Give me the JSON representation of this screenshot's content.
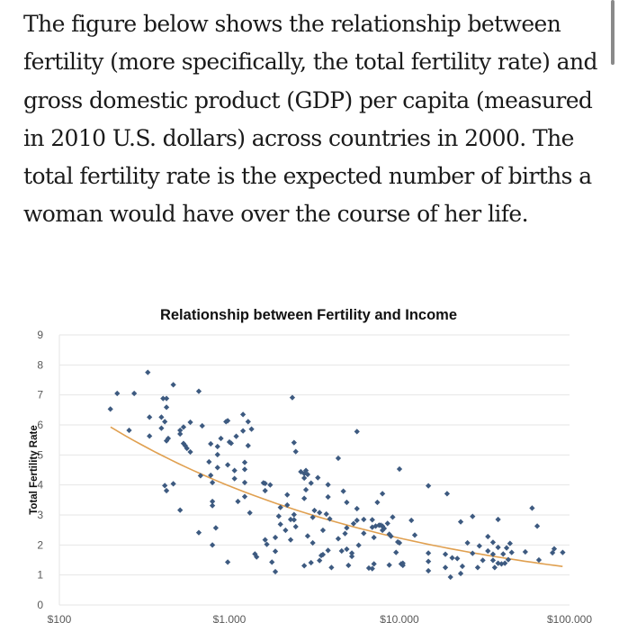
{
  "article": {
    "paragraph": "The figure below shows the relationship between fertility (more specifically, the total fertility rate) and gross domestic product (GDP) per capita (measured in 2010 U.S. dollars) across countries in 2000. The total fertility rate is the expected number of births a woman would have over the course of her life."
  },
  "colors": {
    "points": "#3d5a80",
    "trend": "#e0a050",
    "grid": "#e6e6e6"
  },
  "chart_data": {
    "type": "scatter",
    "title": "Relationship between Fertility and Income",
    "xlabel": "",
    "ylabel": "Total Fertility Rate",
    "xscale": "log",
    "xlim": [
      100,
      100000
    ],
    "ylim": [
      0,
      9
    ],
    "grid": true,
    "legend": "none",
    "x_tick_labels": [
      "$100",
      "$1,000",
      "$10,000",
      "$100,000"
    ],
    "x_ticks": [
      100,
      1000,
      10000,
      100000
    ],
    "y_ticks": [
      0,
      1,
      2,
      3,
      4,
      5,
      6,
      7,
      8,
      9
    ],
    "y_tick_labels": [
      "0",
      "1",
      "2",
      "3",
      "4",
      "5",
      "6",
      "7",
      "8",
      "9"
    ],
    "point_format": "[log10(GDP per capita), total fertility rate]",
    "points": [
      [
        2.3,
        6.53
      ],
      [
        2.34,
        7.05
      ],
      [
        2.44,
        7.05
      ],
      [
        2.41,
        5.82
      ],
      [
        2.52,
        7.75
      ],
      [
        2.53,
        6.26
      ],
      [
        2.53,
        5.63
      ],
      [
        2.6,
        6.26
      ],
      [
        2.6,
        5.89
      ],
      [
        2.61,
        6.88
      ],
      [
        2.63,
        6.88
      ],
      [
        2.62,
        6.11
      ],
      [
        2.63,
        6.59
      ],
      [
        2.63,
        5.47
      ],
      [
        2.64,
        5.55
      ],
      [
        2.67,
        7.34
      ],
      [
        2.62,
        3.98
      ],
      [
        2.63,
        3.81
      ],
      [
        2.67,
        4.04
      ],
      [
        2.71,
        3.16
      ],
      [
        2.71,
        5.82
      ],
      [
        2.71,
        5.7
      ],
      [
        2.73,
        5.93
      ],
      [
        2.73,
        5.38
      ],
      [
        2.74,
        5.31
      ],
      [
        2.75,
        5.22
      ],
      [
        2.77,
        6.09
      ],
      [
        2.77,
        5.1
      ],
      [
        2.82,
        7.12
      ],
      [
        2.84,
        5.97
      ],
      [
        2.82,
        2.41
      ],
      [
        2.83,
        4.31
      ],
      [
        2.88,
        4.77
      ],
      [
        2.89,
        5.37
      ],
      [
        2.89,
        4.32
      ],
      [
        2.9,
        4.08
      ],
      [
        2.9,
        3.45
      ],
      [
        2.9,
        3.31
      ],
      [
        2.9,
        2.0
      ],
      [
        2.92,
        2.57
      ],
      [
        2.93,
        5.28
      ],
      [
        2.93,
        5.01
      ],
      [
        2.93,
        4.58
      ],
      [
        2.95,
        5.55
      ],
      [
        2.98,
        6.11
      ],
      [
        2.99,
        6.14
      ],
      [
        2.99,
        4.67
      ],
      [
        3.0,
        5.43
      ],
      [
        3.01,
        5.39
      ],
      [
        2.99,
        1.43
      ],
      [
        3.03,
        4.21
      ],
      [
        3.04,
        5.62
      ],
      [
        3.03,
        4.48
      ],
      [
        3.05,
        3.45
      ],
      [
        3.08,
        5.8
      ],
      [
        3.08,
        6.35
      ],
      [
        3.09,
        4.75
      ],
      [
        3.09,
        4.52
      ],
      [
        3.09,
        4.08
      ],
      [
        3.09,
        3.61
      ],
      [
        3.11,
        5.31
      ],
      [
        3.11,
        6.11
      ],
      [
        3.12,
        3.07
      ],
      [
        3.13,
        5.86
      ],
      [
        3.15,
        1.7
      ],
      [
        3.16,
        1.6
      ],
      [
        3.2,
        4.07
      ],
      [
        3.21,
        4.05
      ],
      [
        3.21,
        3.81
      ],
      [
        3.24,
        4.0
      ],
      [
        3.21,
        2.17
      ],
      [
        3.22,
        2.02
      ],
      [
        3.25,
        1.43
      ],
      [
        3.27,
        1.11
      ],
      [
        3.27,
        2.25
      ],
      [
        3.27,
        1.79
      ],
      [
        3.29,
        2.96
      ],
      [
        3.3,
        3.25
      ],
      [
        3.3,
        2.69
      ],
      [
        3.33,
        2.49
      ],
      [
        3.34,
        3.67
      ],
      [
        3.34,
        3.33
      ],
      [
        3.36,
        2.17
      ],
      [
        3.37,
        6.91
      ],
      [
        3.36,
        2.85
      ],
      [
        3.38,
        5.41
      ],
      [
        3.39,
        5.11
      ],
      [
        3.38,
        2.84
      ],
      [
        3.38,
        3.01
      ],
      [
        3.39,
        2.61
      ],
      [
        3.42,
        4.44
      ],
      [
        3.44,
        4.23
      ],
      [
        3.44,
        4.38
      ],
      [
        3.45,
        4.48
      ],
      [
        3.46,
        4.35
      ],
      [
        3.45,
        3.84
      ],
      [
        3.44,
        3.55
      ],
      [
        3.44,
        1.31
      ],
      [
        3.46,
        2.3
      ],
      [
        3.48,
        1.41
      ],
      [
        3.48,
        4.06
      ],
      [
        3.49,
        2.92
      ],
      [
        3.5,
        3.15
      ],
      [
        3.52,
        4.24
      ],
      [
        3.53,
        3.08
      ],
      [
        3.49,
        2.07
      ],
      [
        3.53,
        1.48
      ],
      [
        3.54,
        1.65
      ],
      [
        3.55,
        1.68
      ],
      [
        3.55,
        2.49
      ],
      [
        3.57,
        3.03
      ],
      [
        3.58,
        4.01
      ],
      [
        3.58,
        3.6
      ],
      [
        3.58,
        1.82
      ],
      [
        3.59,
        2.87
      ],
      [
        3.6,
        1.25
      ],
      [
        3.64,
        4.89
      ],
      [
        3.64,
        2.21
      ],
      [
        3.67,
        3.79
      ],
      [
        3.66,
        1.8
      ],
      [
        3.68,
        2.38
      ],
      [
        3.69,
        2.57
      ],
      [
        3.69,
        1.86
      ],
      [
        3.69,
        3.42
      ],
      [
        3.7,
        1.32
      ],
      [
        3.72,
        1.73
      ],
      [
        3.72,
        1.62
      ],
      [
        3.73,
        2.71
      ],
      [
        3.75,
        5.78
      ],
      [
        3.75,
        3.21
      ],
      [
        3.75,
        2.82
      ],
      [
        3.76,
        1.99
      ],
      [
        3.79,
        2.39
      ],
      [
        3.79,
        2.85
      ],
      [
        3.82,
        1.23
      ],
      [
        3.84,
        2.59
      ],
      [
        3.84,
        1.21
      ],
      [
        3.84,
        2.84
      ],
      [
        3.85,
        1.37
      ],
      [
        3.85,
        2.25
      ],
      [
        3.86,
        2.63
      ],
      [
        3.87,
        3.42
      ],
      [
        3.88,
        2.66
      ],
      [
        3.89,
        2.66
      ],
      [
        3.9,
        2.49
      ],
      [
        3.9,
        3.71
      ],
      [
        3.9,
        2.63
      ],
      [
        3.91,
        2.55
      ],
      [
        3.93,
        2.72
      ],
      [
        3.94,
        1.33
      ],
      [
        3.94,
        2.36
      ],
      [
        3.95,
        2.29
      ],
      [
        3.96,
        2.93
      ],
      [
        3.98,
        1.75
      ],
      [
        3.99,
        2.1
      ],
      [
        4.0,
        2.07
      ],
      [
        4.0,
        4.53
      ],
      [
        4.01,
        1.37
      ],
      [
        4.02,
        1.32
      ],
      [
        4.02,
        1.39
      ],
      [
        4.07,
        2.82
      ],
      [
        4.09,
        2.33
      ],
      [
        4.17,
        3.97
      ],
      [
        4.17,
        1.73
      ],
      [
        4.17,
        1.45
      ],
      [
        4.17,
        1.14
      ],
      [
        4.27,
        1.69
      ],
      [
        4.27,
        1.25
      ],
      [
        4.28,
        3.71
      ],
      [
        4.3,
        0.93
      ],
      [
        4.31,
        1.57
      ],
      [
        4.34,
        1.55
      ],
      [
        4.36,
        2.77
      ],
      [
        4.36,
        1.05
      ],
      [
        4.37,
        1.29
      ],
      [
        4.4,
        2.07
      ],
      [
        4.43,
        1.72
      ],
      [
        4.43,
        2.95
      ],
      [
        4.46,
        1.25
      ],
      [
        4.47,
        1.97
      ],
      [
        4.49,
        1.49
      ],
      [
        4.52,
        2.28
      ],
      [
        4.52,
        1.8
      ],
      [
        4.55,
        1.69
      ],
      [
        4.55,
        1.49
      ],
      [
        4.55,
        2.09
      ],
      [
        4.56,
        1.25
      ],
      [
        4.58,
        2.85
      ],
      [
        4.58,
        1.39
      ],
      [
        4.58,
        1.92
      ],
      [
        4.6,
        1.37
      ],
      [
        4.61,
        1.7
      ],
      [
        4.62,
        1.39
      ],
      [
        4.63,
        1.9
      ],
      [
        4.64,
        1.51
      ],
      [
        4.65,
        2.05
      ],
      [
        4.66,
        1.75
      ],
      [
        4.74,
        1.77
      ],
      [
        4.78,
        3.23
      ],
      [
        4.81,
        2.63
      ],
      [
        4.82,
        1.5
      ],
      [
        4.9,
        1.74
      ],
      [
        4.91,
        1.87
      ],
      [
        4.96,
        1.75
      ]
    ],
    "trendline": {
      "type": "power",
      "x_range": [
        200,
        91000
      ],
      "anchor_gdp": 200,
      "anchor_tfr": 5.93,
      "exponent": -0.25
    }
  }
}
